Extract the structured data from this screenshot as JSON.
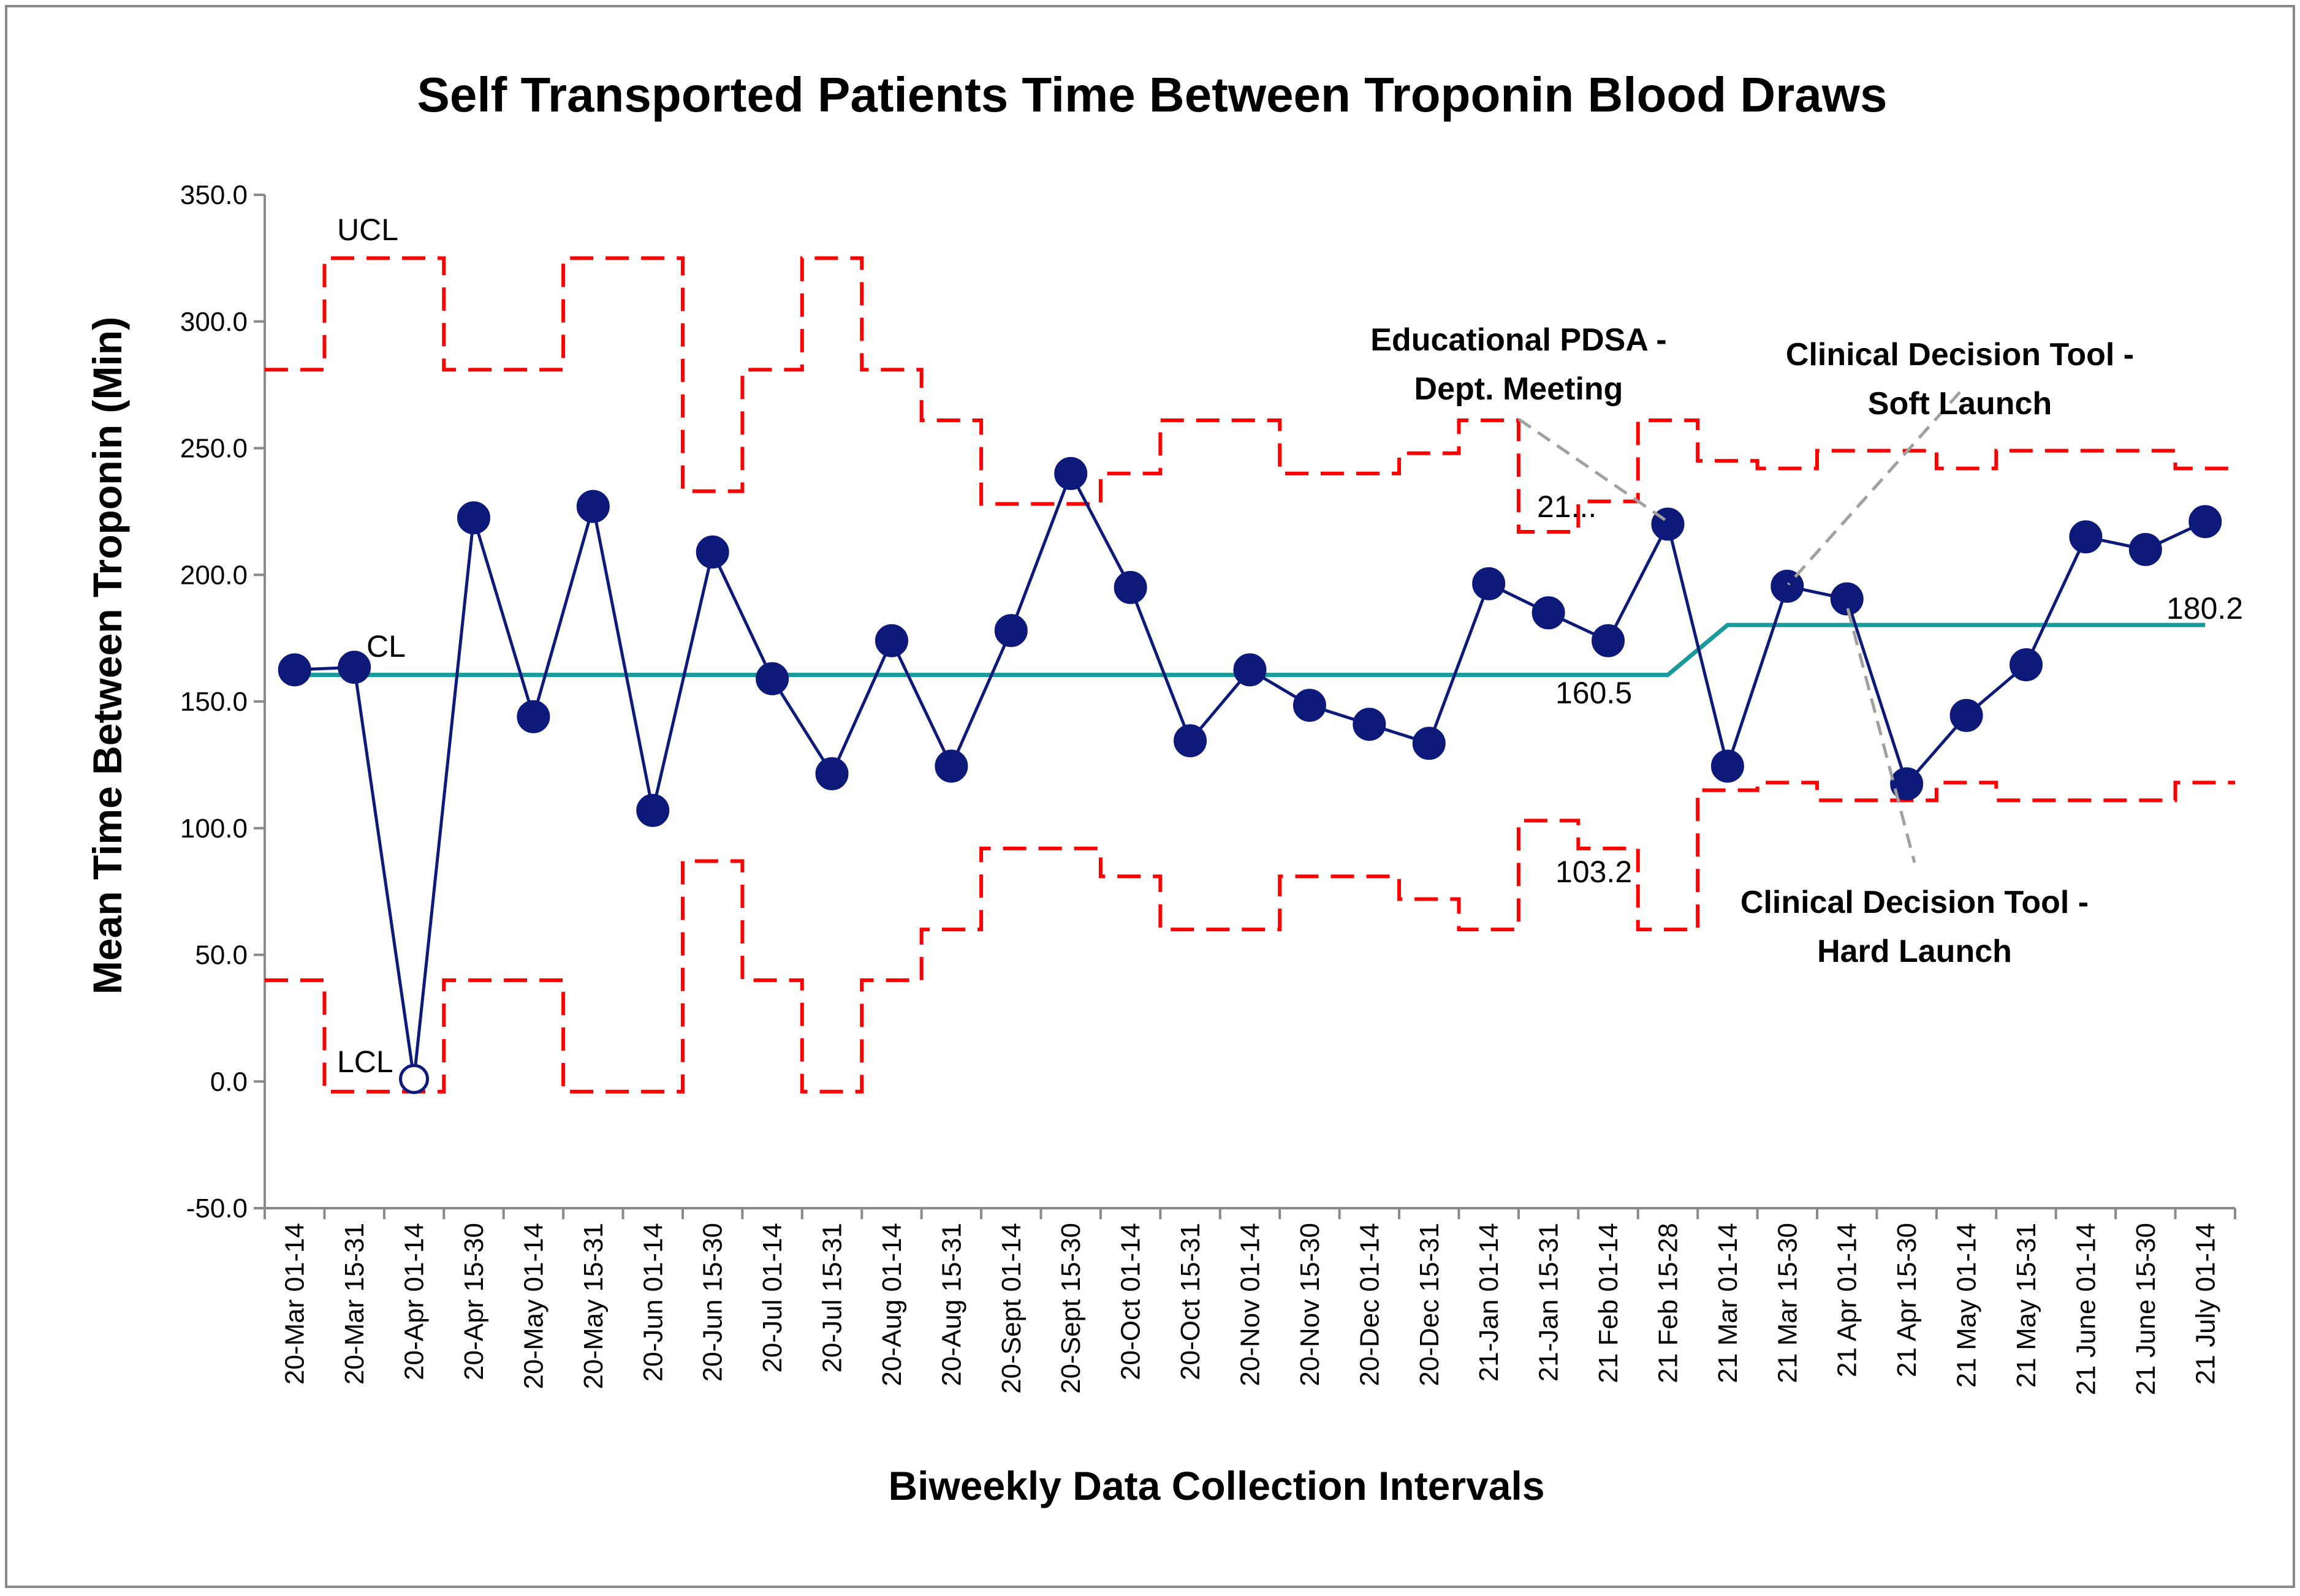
{
  "chart_data": {
    "type": "line",
    "title": "Self Transported Patients Time Between Troponin Blood Draws",
    "xlabel": "Biweekly Data Collection Intervals",
    "ylabel": "Mean Time Between Troponin (Min)",
    "ylim": [
      -50,
      350
    ],
    "ytick_step": 50,
    "ytick_labels": [
      "-50.0",
      "0.0",
      "50.0",
      "100.0",
      "150.0",
      "200.0",
      "250.0",
      "300.0",
      "350.0"
    ],
    "categories": [
      "20-Mar 01-14",
      "20-Mar 15-31",
      "20-Apr 01-14",
      "20-Apr 15-30",
      "20-May 01-14",
      "20-May 15-31",
      "20-Jun 01-14",
      "20-Jun 15-30",
      "20-Jul 01-14",
      "20-Jul 15-31",
      "20-Aug 01-14",
      "20-Aug 15-31",
      "20-Sept 01-14",
      "20-Sept 15-30",
      "20-Oct 01-14",
      "20-Oct 15-31",
      "20-Nov 01-14",
      "20-Nov 15-30",
      "20-Dec 01-14",
      "20-Dec 15-31",
      "21-Jan 01-14",
      "21-Jan 15-31",
      "21 Feb 01-14",
      "21 Feb 15-28",
      "21 Mar 01-14",
      "21 Mar 15-30",
      "21 Apr 01-14",
      "21 Apr 15-30",
      "21 May 01-14",
      "21 May 15-31",
      "21 June 01-14",
      "21 June 15-30",
      "21 July 01-14"
    ],
    "series": [
      {
        "name": "Mean",
        "color": "#0d1a7a",
        "values": [
          162.5,
          163.5,
          1.0,
          222.5,
          144.0,
          227.0,
          107.0,
          209.0,
          159.0,
          121.5,
          174.0,
          124.5,
          178.0,
          240.0,
          195.0,
          134.5,
          162.5,
          148.5,
          141.0,
          133.5,
          196.5,
          185.0,
          174.0,
          220.0,
          124.5,
          195.5,
          190.5,
          117.5,
          144.5,
          164.5,
          215.0,
          210.0,
          221.0
        ]
      },
      {
        "name": "CL",
        "color": "#1a9a9a",
        "values": [
          160.5,
          160.5,
          160.5,
          160.5,
          160.5,
          160.5,
          160.5,
          160.5,
          160.5,
          160.5,
          160.5,
          160.5,
          160.5,
          160.5,
          160.5,
          160.5,
          160.5,
          160.5,
          160.5,
          160.5,
          160.5,
          160.5,
          160.5,
          160.5,
          180.2,
          180.2,
          180.2,
          180.2,
          180.2,
          180.2,
          180.2,
          180.2,
          180.2
        ]
      },
      {
        "name": "UCL",
        "color": "#ff0000",
        "values": [
          281,
          325,
          325,
          281,
          281,
          325,
          325,
          233,
          281,
          325,
          281,
          261,
          228,
          228,
          240,
          261,
          261,
          240,
          240,
          248,
          261,
          217,
          229,
          261,
          245,
          242,
          249,
          249,
          242,
          249,
          249,
          249,
          242
        ]
      },
      {
        "name": "LCL",
        "color": "#ff0000",
        "values": [
          40,
          -4,
          -4,
          40,
          40,
          -4,
          -4,
          87,
          40,
          -4,
          40,
          60,
          92,
          92,
          81,
          60,
          60,
          81,
          81,
          72,
          60,
          103,
          92,
          60,
          115,
          118,
          111,
          111,
          118,
          111,
          111,
          111,
          118
        ]
      }
    ],
    "hollow_marker_index": 2,
    "series_labels": {
      "ucl": "UCL",
      "cl": "CL",
      "lcl": "LCL"
    },
    "value_labels": {
      "cl_phase1": "160.5",
      "cl_phase2": "180.2",
      "lcl_phase": "103.2",
      "ucl_phase": "21..."
    },
    "annotations": [
      {
        "line1": "Educational PDSA -",
        "line2": "Dept. Meeting"
      },
      {
        "line1": "Clinical Decision Tool -",
        "line2": "Soft Launch"
      },
      {
        "line1": "Clinical Decision Tool -",
        "line2": "Hard Launch"
      }
    ]
  }
}
